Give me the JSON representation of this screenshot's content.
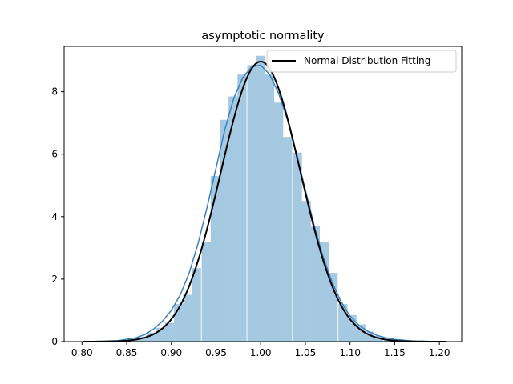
{
  "chart_data": {
    "type": "bar",
    "title": "asymptotic normality",
    "xlabel": "",
    "ylabel": "",
    "xlim": [
      0.78,
      1.225
    ],
    "ylim": [
      0,
      9.45
    ],
    "xticks": [
      "0.80",
      "0.85",
      "0.90",
      "0.95",
      "1.00",
      "1.05",
      "1.10",
      "1.15",
      "1.20"
    ],
    "yticks": [
      "0",
      "2",
      "4",
      "6",
      "8"
    ],
    "grid": false,
    "legend": {
      "placement": "top-right",
      "entries": [
        "Normal Distribution Fitting"
      ]
    },
    "histogram": {
      "bin_width": 0.0102,
      "bin_starts": [
        0.801,
        0.811,
        0.821,
        0.832,
        0.842,
        0.852,
        0.862,
        0.872,
        0.883,
        0.893,
        0.903,
        0.913,
        0.923,
        0.934,
        0.944,
        0.954,
        0.964,
        0.974,
        0.985,
        0.995,
        1.005,
        1.015,
        1.025,
        1.036,
        1.046,
        1.056,
        1.066,
        1.076,
        1.087,
        1.097,
        1.107,
        1.117,
        1.127,
        1.138,
        1.148,
        1.158,
        1.168,
        1.178,
        1.189,
        1.199
      ],
      "values": [
        0.0,
        0.0,
        0.0,
        0.02,
        0.04,
        0.08,
        0.15,
        0.28,
        0.44,
        0.6,
        1.2,
        1.5,
        2.35,
        3.2,
        5.3,
        7.1,
        7.85,
        8.55,
        8.85,
        9.15,
        8.55,
        7.65,
        6.55,
        6.05,
        4.5,
        3.7,
        3.2,
        2.2,
        1.2,
        0.85,
        0.55,
        0.32,
        0.18,
        0.08,
        0.04,
        0.02,
        0.01,
        0.0,
        0.0,
        0.0
      ],
      "color": "#a6c9e2"
    },
    "kde": {
      "color": "#3a80bd",
      "x": [
        0.801,
        0.82,
        0.84,
        0.86,
        0.87,
        0.88,
        0.89,
        0.9,
        0.91,
        0.92,
        0.93,
        0.94,
        0.95,
        0.96,
        0.97,
        0.98,
        0.99,
        1.0,
        1.01,
        1.02,
        1.03,
        1.04,
        1.05,
        1.06,
        1.07,
        1.08,
        1.09,
        1.1,
        1.11,
        1.12,
        1.13,
        1.14,
        1.15,
        1.17,
        1.19,
        1.208
      ],
      "y": [
        0.0,
        0.01,
        0.03,
        0.12,
        0.22,
        0.4,
        0.65,
        1.0,
        1.5,
        2.2,
        3.15,
        4.3,
        5.55,
        6.8,
        7.8,
        8.45,
        8.8,
        8.85,
        8.55,
        7.95,
        7.1,
        6.0,
        4.85,
        3.7,
        2.7,
        1.9,
        1.28,
        0.82,
        0.52,
        0.33,
        0.2,
        0.12,
        0.07,
        0.02,
        0.005,
        0.0
      ]
    },
    "normal_fit": {
      "name": "Normal Distribution Fitting",
      "color": "#000000",
      "mean": 1.0,
      "std": 0.0445,
      "x_range": [
        0.801,
        1.208
      ]
    }
  }
}
